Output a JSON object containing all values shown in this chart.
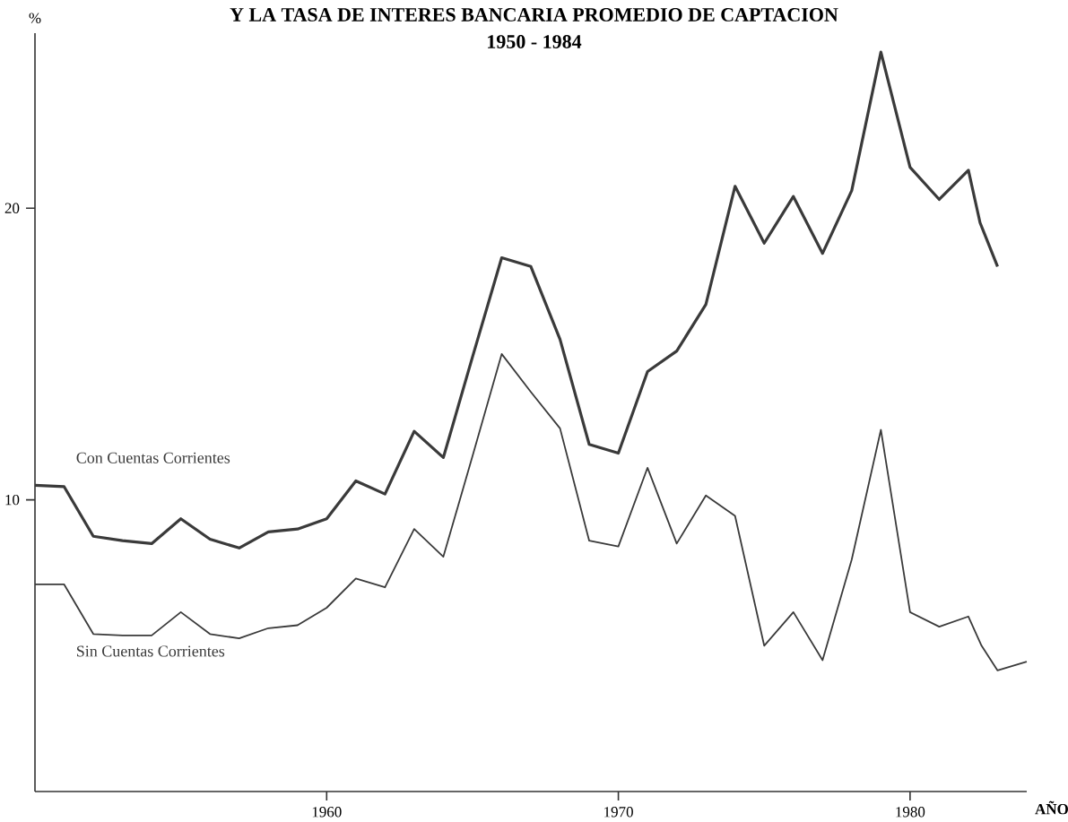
{
  "chart_data": {
    "type": "line",
    "title": "Y LA TASA DE INTERES BANCARIA PROMEDIO DE CAPTACION",
    "subtitle": "1950 - 1984",
    "xlabel": "AÑO",
    "ylabel": "%",
    "xlim": [
      1950,
      1984
    ],
    "ylim": [
      0,
      26
    ],
    "xticks": [
      1960,
      1970,
      1980
    ],
    "yticks": [
      10,
      20
    ],
    "line_style": "solid",
    "marker": "none",
    "series": [
      {
        "name": "Con Cuentas Corrientes",
        "color": "#3a3a3a",
        "x": [
          1950,
          1951,
          1952,
          1953,
          1954,
          1955,
          1956,
          1957,
          1958,
          1959,
          1960,
          1961,
          1962,
          1963,
          1964,
          1965,
          1966,
          1967,
          1968,
          1969,
          1970,
          1971,
          1972,
          1973,
          1974,
          1975,
          1976,
          1977,
          1978,
          1979,
          1980,
          1981,
          1982,
          1982.4,
          1983
        ],
        "values": [
          10.5,
          10.45,
          8.75,
          8.6,
          8.5,
          9.35,
          8.65,
          8.35,
          8.9,
          9.0,
          9.35,
          10.65,
          10.2,
          12.35,
          11.45,
          14.9,
          18.3,
          18.0,
          15.5,
          11.9,
          11.6,
          14.4,
          15.1,
          16.7,
          20.75,
          18.8,
          20.4,
          18.45,
          20.6,
          25.35,
          21.4,
          20.3,
          21.3,
          19.5,
          18.0
        ]
      },
      {
        "name": "Sin Cuentas Corrientes",
        "color": "#3a3a3a",
        "x": [
          1950,
          1951,
          1952,
          1953,
          1954,
          1955,
          1956,
          1957,
          1958,
          1959,
          1960,
          1961,
          1962,
          1963,
          1964,
          1965,
          1966,
          1967,
          1968,
          1969,
          1970,
          1971,
          1972,
          1973,
          1974,
          1975,
          1976,
          1977,
          1978,
          1979,
          1980,
          1981,
          1982,
          1982.45,
          1983,
          1984
        ],
        "values": [
          7.1,
          7.1,
          5.4,
          5.35,
          5.35,
          6.15,
          5.4,
          5.25,
          5.6,
          5.7,
          6.3,
          7.3,
          7.0,
          9.0,
          8.05,
          11.5,
          15.0,
          13.7,
          12.45,
          8.6,
          8.4,
          11.1,
          8.5,
          10.15,
          9.45,
          5.0,
          6.15,
          4.5,
          7.95,
          12.4,
          6.15,
          5.65,
          6.0,
          5.0,
          4.15,
          4.45
        ]
      }
    ]
  }
}
